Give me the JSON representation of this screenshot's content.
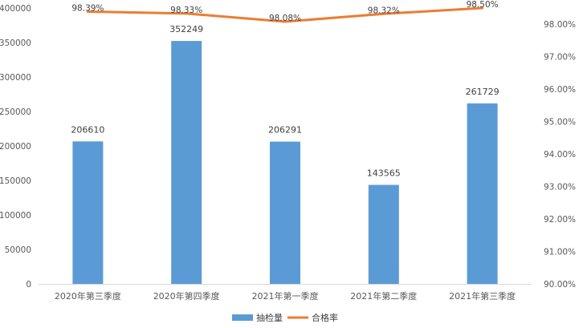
{
  "chart_data": {
    "type": "bar",
    "categories": [
      "2020年第三季度",
      "2020年第四季度",
      "2021年第一季度",
      "2021年第二季度",
      "2021年第三季度"
    ],
    "series": [
      {
        "name": "抽检量",
        "type": "bar",
        "axis": "left",
        "values": [
          206610,
          352249,
          206291,
          143565,
          261729
        ],
        "labels": [
          "206610",
          "352249",
          "206291",
          "143565",
          "261729"
        ],
        "color": "#5B9BD5"
      },
      {
        "name": "合格率",
        "type": "line",
        "axis": "right",
        "values": [
          98.39,
          98.33,
          98.08,
          98.32,
          98.5
        ],
        "labels": [
          "98.39%",
          "98.33%",
          "98.08%",
          "98.32%",
          "98.50%"
        ],
        "color": "#ED7D31"
      }
    ],
    "ylim_left": [
      0,
      400000
    ],
    "yticks_left": [
      "0",
      "50000",
      "100000",
      "150000",
      "200000",
      "250000",
      "300000",
      "350000",
      "400000"
    ],
    "ylim_right": [
      90,
      98.5
    ],
    "yticks_right": [
      "90.00%",
      "91.00%",
      "92.00%",
      "93.00%",
      "94.00%",
      "95.00%",
      "96.00%",
      "97.00%",
      "98.00%"
    ],
    "title": "",
    "xlabel": "",
    "ylabel": "",
    "grid": false,
    "legend_position": "bottom"
  }
}
